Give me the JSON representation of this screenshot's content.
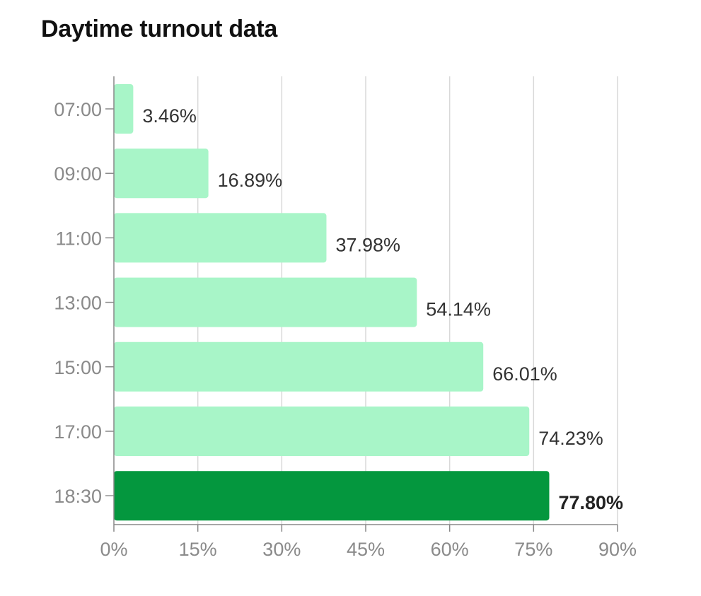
{
  "chart_data": {
    "type": "bar",
    "orientation": "horizontal",
    "title": "Daytime turnout data",
    "categories": [
      "07:00",
      "09:00",
      "11:00",
      "13:00",
      "15:00",
      "17:00",
      "18:30"
    ],
    "values": [
      3.46,
      16.89,
      37.98,
      54.14,
      66.01,
      74.23,
      77.8
    ],
    "value_labels": [
      "3.46%",
      "16.89%",
      "37.98%",
      "54.14%",
      "66.01%",
      "74.23%",
      "77.80%"
    ],
    "xlim": [
      0,
      90
    ],
    "x_ticks": [
      0,
      15,
      30,
      45,
      60,
      75,
      90
    ],
    "x_tick_labels": [
      "0%",
      "15%",
      "30%",
      "45%",
      "60%",
      "75%",
      "90%"
    ],
    "grid": true,
    "highlight_index": 6,
    "colors": {
      "bar": "#a8f5c8",
      "highlight": "#04973e",
      "grid": "#d9d9d9",
      "axis": "#888888"
    }
  }
}
